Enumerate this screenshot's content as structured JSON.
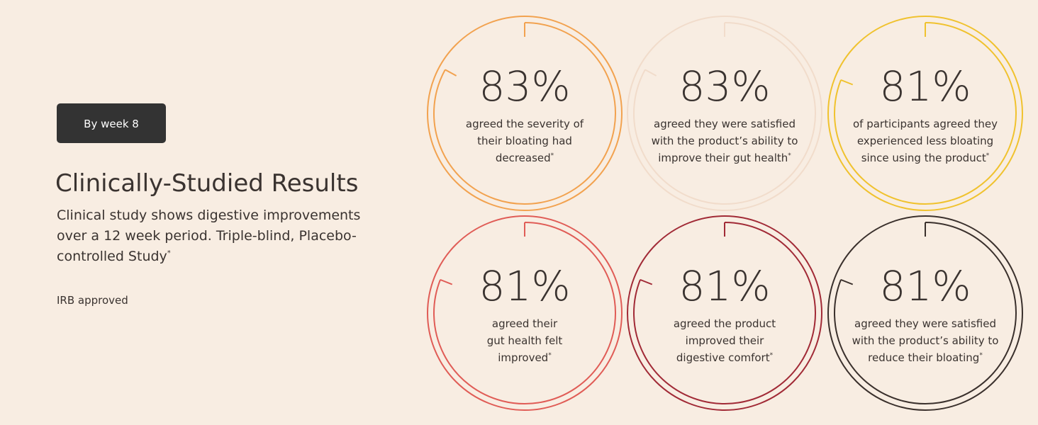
{
  "badge": "By week 8",
  "title": "Clinically-Studied Results",
  "description": {
    "lines": [
      "Clinical study shows digestive improvements",
      "over a 12 week period. Triple-blind, Placebo-",
      "controlled Study"
    ],
    "footnote_mark": "*"
  },
  "note": "IRB approved",
  "stats": [
    {
      "value": 83,
      "value_label": "83%",
      "color": "#f2a24f",
      "lines": [
        "agreed the severity of",
        "their bloating had",
        "decreased"
      ],
      "footnote_mark": "*"
    },
    {
      "value": 83,
      "value_label": "83%",
      "color": "#f1dccb",
      "lines": [
        "agreed they were satisfied",
        "with the product’s ability to",
        "improve their gut health"
      ],
      "footnote_mark": "*"
    },
    {
      "value": 81,
      "value_label": "81%",
      "color": "#f0c22e",
      "lines": [
        "of participants agreed they",
        "experienced less bloating",
        "since using the product"
      ],
      "footnote_mark": "*"
    },
    {
      "value": 81,
      "value_label": "81%",
      "color": "#e05c56",
      "lines": [
        "agreed their",
        "gut health felt",
        "improved"
      ],
      "footnote_mark": "*"
    },
    {
      "value": 81,
      "value_label": "81%",
      "color": "#a12a36",
      "lines": [
        "agreed the product",
        "improved their",
        "digestive comfort"
      ],
      "footnote_mark": "*"
    },
    {
      "value": 81,
      "value_label": "81%",
      "color": "#3a302c",
      "lines": [
        "agreed they were satisfied",
        "with the product’s ability to",
        "reduce their bloating"
      ],
      "footnote_mark": "*"
    }
  ]
}
